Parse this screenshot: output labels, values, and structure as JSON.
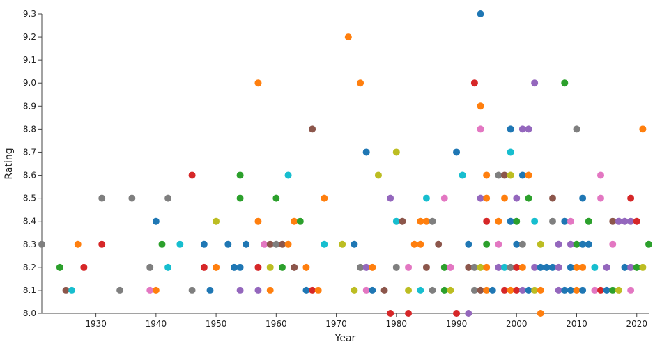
{
  "chart_data": {
    "type": "scatter",
    "title": "",
    "xlabel": "Year",
    "ylabel": "Rating",
    "xlim": [
      1921,
      2022
    ],
    "ylim": [
      8.0,
      9.3
    ],
    "x_ticks": [
      1930,
      1940,
      1950,
      1960,
      1970,
      1980,
      1990,
      2000,
      2010,
      2020
    ],
    "x_tick_labels": [
      "1930",
      "1940",
      "1950",
      "1960",
      "1970",
      "1980",
      "1990",
      "2000",
      "2010",
      "2020"
    ],
    "y_ticks": [
      8.0,
      8.1,
      8.2,
      8.3,
      8.4,
      8.5,
      8.6,
      8.7,
      8.8,
      8.9,
      9.0,
      9.1,
      9.2,
      9.3
    ],
    "y_tick_labels": [
      "8.0",
      "8.1",
      "8.2",
      "8.3",
      "8.4",
      "8.5",
      "8.6",
      "8.7",
      "8.8",
      "8.9",
      "9.0",
      "9.1",
      "9.2",
      "9.3"
    ],
    "grid": false,
    "legend": "none",
    "palette": [
      "#1f77b4",
      "#ff7f0e",
      "#2ca02c",
      "#d62728",
      "#9467bd",
      "#8c564b",
      "#e377c2",
      "#7f7f7f",
      "#bcbd22",
      "#17becf"
    ],
    "points": [
      {
        "x": 1921,
        "y": 8.3,
        "c": "#7f7f7f"
      },
      {
        "x": 1924,
        "y": 8.2,
        "c": "#2ca02c"
      },
      {
        "x": 1925,
        "y": 8.1,
        "c": "#8c564b"
      },
      {
        "x": 1926,
        "y": 8.1,
        "c": "#17becf"
      },
      {
        "x": 1927,
        "y": 8.3,
        "c": "#ff7f0e"
      },
      {
        "x": 1928,
        "y": 8.2,
        "c": "#d62728"
      },
      {
        "x": 1931,
        "y": 8.5,
        "c": "#7f7f7f"
      },
      {
        "x": 1931,
        "y": 8.3,
        "c": "#d62728"
      },
      {
        "x": 1934,
        "y": 8.1,
        "c": "#7f7f7f"
      },
      {
        "x": 1936,
        "y": 8.5,
        "c": "#7f7f7f"
      },
      {
        "x": 1939,
        "y": 8.2,
        "c": "#7f7f7f"
      },
      {
        "x": 1939,
        "y": 8.1,
        "c": "#e377c2"
      },
      {
        "x": 1940,
        "y": 8.4,
        "c": "#1f77b4"
      },
      {
        "x": 1940,
        "y": 8.1,
        "c": "#ff7f0e"
      },
      {
        "x": 1941,
        "y": 8.3,
        "c": "#2ca02c"
      },
      {
        "x": 1942,
        "y": 8.5,
        "c": "#7f7f7f"
      },
      {
        "x": 1942,
        "y": 8.2,
        "c": "#17becf"
      },
      {
        "x": 1944,
        "y": 8.3,
        "c": "#17becf"
      },
      {
        "x": 1946,
        "y": 8.6,
        "c": "#d62728"
      },
      {
        "x": 1946,
        "y": 8.1,
        "c": "#7f7f7f"
      },
      {
        "x": 1948,
        "y": 8.3,
        "c": "#1f77b4"
      },
      {
        "x": 1948,
        "y": 8.2,
        "c": "#d62728"
      },
      {
        "x": 1949,
        "y": 8.1,
        "c": "#1f77b4"
      },
      {
        "x": 1950,
        "y": 8.4,
        "c": "#bcbd22"
      },
      {
        "x": 1950,
        "y": 8.2,
        "c": "#ff7f0e"
      },
      {
        "x": 1952,
        "y": 8.3,
        "c": "#1f77b4"
      },
      {
        "x": 1953,
        "y": 8.2,
        "c": "#1f77b4"
      },
      {
        "x": 1954,
        "y": 8.6,
        "c": "#2ca02c"
      },
      {
        "x": 1954,
        "y": 8.5,
        "c": "#2ca02c"
      },
      {
        "x": 1954,
        "y": 8.2,
        "c": "#1f77b4"
      },
      {
        "x": 1954,
        "y": 8.1,
        "c": "#9467bd"
      },
      {
        "x": 1955,
        "y": 8.3,
        "c": "#1f77b4"
      },
      {
        "x": 1957,
        "y": 9.0,
        "c": "#ff7f0e"
      },
      {
        "x": 1957,
        "y": 8.4,
        "c": "#ff7f0e"
      },
      {
        "x": 1957,
        "y": 8.2,
        "c": "#d62728"
      },
      {
        "x": 1957,
        "y": 8.1,
        "c": "#9467bd"
      },
      {
        "x": 1958,
        "y": 8.3,
        "c": "#e377c2"
      },
      {
        "x": 1959,
        "y": 8.3,
        "c": "#8c564b"
      },
      {
        "x": 1959,
        "y": 8.2,
        "c": "#bcbd22"
      },
      {
        "x": 1959,
        "y": 8.1,
        "c": "#ff7f0e"
      },
      {
        "x": 1960,
        "y": 8.5,
        "c": "#2ca02c"
      },
      {
        "x": 1960,
        "y": 8.3,
        "c": "#7f7f7f"
      },
      {
        "x": 1961,
        "y": 8.3,
        "c": "#8c564b"
      },
      {
        "x": 1961,
        "y": 8.2,
        "c": "#2ca02c"
      },
      {
        "x": 1962,
        "y": 8.6,
        "c": "#17becf"
      },
      {
        "x": 1962,
        "y": 8.3,
        "c": "#ff7f0e"
      },
      {
        "x": 1963,
        "y": 8.4,
        "c": "#ff7f0e"
      },
      {
        "x": 1963,
        "y": 8.2,
        "c": "#8c564b"
      },
      {
        "x": 1964,
        "y": 8.4,
        "c": "#2ca02c"
      },
      {
        "x": 1965,
        "y": 8.2,
        "c": "#ff7f0e"
      },
      {
        "x": 1965,
        "y": 8.1,
        "c": "#1f77b4"
      },
      {
        "x": 1966,
        "y": 8.8,
        "c": "#8c564b"
      },
      {
        "x": 1966,
        "y": 8.1,
        "c": "#d62728"
      },
      {
        "x": 1967,
        "y": 8.1,
        "c": "#ff7f0e"
      },
      {
        "x": 1968,
        "y": 8.5,
        "c": "#ff7f0e"
      },
      {
        "x": 1968,
        "y": 8.3,
        "c": "#17becf"
      },
      {
        "x": 1971,
        "y": 8.3,
        "c": "#bcbd22"
      },
      {
        "x": 1972,
        "y": 9.2,
        "c": "#ff7f0e"
      },
      {
        "x": 1973,
        "y": 8.3,
        "c": "#1f77b4"
      },
      {
        "x": 1973,
        "y": 8.1,
        "c": "#bcbd22"
      },
      {
        "x": 1974,
        "y": 9.0,
        "c": "#ff7f0e"
      },
      {
        "x": 1974,
        "y": 8.2,
        "c": "#7f7f7f"
      },
      {
        "x": 1975,
        "y": 8.7,
        "c": "#1f77b4"
      },
      {
        "x": 1975,
        "y": 8.2,
        "c": "#9467bd"
      },
      {
        "x": 1975,
        "y": 8.1,
        "c": "#e377c2"
      },
      {
        "x": 1976,
        "y": 8.2,
        "c": "#ff7f0e"
      },
      {
        "x": 1976,
        "y": 8.1,
        "c": "#1f77b4"
      },
      {
        "x": 1977,
        "y": 8.6,
        "c": "#bcbd22"
      },
      {
        "x": 1978,
        "y": 8.1,
        "c": "#8c564b"
      },
      {
        "x": 1979,
        "y": 8.5,
        "c": "#9467bd"
      },
      {
        "x": 1979,
        "y": 8.0,
        "c": "#d62728"
      },
      {
        "x": 1980,
        "y": 8.7,
        "c": "#bcbd22"
      },
      {
        "x": 1980,
        "y": 8.4,
        "c": "#17becf"
      },
      {
        "x": 1980,
        "y": 8.2,
        "c": "#7f7f7f"
      },
      {
        "x": 1981,
        "y": 8.4,
        "c": "#8c564b"
      },
      {
        "x": 1982,
        "y": 8.2,
        "c": "#e377c2"
      },
      {
        "x": 1982,
        "y": 8.1,
        "c": "#bcbd22"
      },
      {
        "x": 1982,
        "y": 8.0,
        "c": "#d62728"
      },
      {
        "x": 1983,
        "y": 8.3,
        "c": "#ff7f0e"
      },
      {
        "x": 1984,
        "y": 8.4,
        "c": "#ff7f0e"
      },
      {
        "x": 1984,
        "y": 8.3,
        "c": "#ff7f0e"
      },
      {
        "x": 1984,
        "y": 8.1,
        "c": "#17becf"
      },
      {
        "x": 1985,
        "y": 8.5,
        "c": "#17becf"
      },
      {
        "x": 1985,
        "y": 8.4,
        "c": "#ff7f0e"
      },
      {
        "x": 1985,
        "y": 8.2,
        "c": "#8c564b"
      },
      {
        "x": 1986,
        "y": 8.4,
        "c": "#7f7f7f"
      },
      {
        "x": 1986,
        "y": 8.1,
        "c": "#7f7f7f"
      },
      {
        "x": 1987,
        "y": 8.3,
        "c": "#8c564b"
      },
      {
        "x": 1988,
        "y": 8.5,
        "c": "#e377c2"
      },
      {
        "x": 1988,
        "y": 8.2,
        "c": "#2ca02c"
      },
      {
        "x": 1988,
        "y": 8.1,
        "c": "#2ca02c"
      },
      {
        "x": 1989,
        "y": 8.2,
        "c": "#e377c2"
      },
      {
        "x": 1989,
        "y": 8.1,
        "c": "#bcbd22"
      },
      {
        "x": 1990,
        "y": 8.7,
        "c": "#1f77b4"
      },
      {
        "x": 1990,
        "y": 8.0,
        "c": "#d62728"
      },
      {
        "x": 1991,
        "y": 8.6,
        "c": "#17becf"
      },
      {
        "x": 1992,
        "y": 8.3,
        "c": "#1f77b4"
      },
      {
        "x": 1992,
        "y": 8.2,
        "c": "#8c564b"
      },
      {
        "x": 1992,
        "y": 8.0,
        "c": "#9467bd"
      },
      {
        "x": 1993,
        "y": 9.0,
        "c": "#d62728"
      },
      {
        "x": 1993,
        "y": 8.2,
        "c": "#7f7f7f"
      },
      {
        "x": 1993,
        "y": 8.1,
        "c": "#7f7f7f"
      },
      {
        "x": 1994,
        "y": 9.3,
        "c": "#1f77b4"
      },
      {
        "x": 1994,
        "y": 8.9,
        "c": "#ff7f0e"
      },
      {
        "x": 1994,
        "y": 8.8,
        "c": "#e377c2"
      },
      {
        "x": 1994,
        "y": 8.5,
        "c": "#9467bd"
      },
      {
        "x": 1994,
        "y": 8.2,
        "c": "#bcbd22"
      },
      {
        "x": 1994,
        "y": 8.1,
        "c": "#8c564b"
      },
      {
        "x": 1995,
        "y": 8.6,
        "c": "#ff7f0e"
      },
      {
        "x": 1995,
        "y": 8.5,
        "c": "#ff7f0e"
      },
      {
        "x": 1995,
        "y": 8.4,
        "c": "#d62728"
      },
      {
        "x": 1995,
        "y": 8.3,
        "c": "#2ca02c"
      },
      {
        "x": 1995,
        "y": 8.2,
        "c": "#ff7f0e"
      },
      {
        "x": 1995,
        "y": 8.1,
        "c": "#ff7f0e"
      },
      {
        "x": 1996,
        "y": 8.1,
        "c": "#1f77b4"
      },
      {
        "x": 1997,
        "y": 8.6,
        "c": "#7f7f7f"
      },
      {
        "x": 1997,
        "y": 8.4,
        "c": "#ff7f0e"
      },
      {
        "x": 1997,
        "y": 8.3,
        "c": "#e377c2"
      },
      {
        "x": 1997,
        "y": 8.2,
        "c": "#9467bd"
      },
      {
        "x": 1998,
        "y": 8.6,
        "c": "#8c564b"
      },
      {
        "x": 1998,
        "y": 8.5,
        "c": "#ff7f0e"
      },
      {
        "x": 1998,
        "y": 8.2,
        "c": "#17becf"
      },
      {
        "x": 1998,
        "y": 8.1,
        "c": "#d62728"
      },
      {
        "x": 1999,
        "y": 8.8,
        "c": "#1f77b4"
      },
      {
        "x": 1999,
        "y": 8.7,
        "c": "#17becf"
      },
      {
        "x": 1999,
        "y": 8.6,
        "c": "#bcbd22"
      },
      {
        "x": 1999,
        "y": 8.4,
        "c": "#1f77b4"
      },
      {
        "x": 1999,
        "y": 8.2,
        "c": "#7f7f7f"
      },
      {
        "x": 1999,
        "y": 8.1,
        "c": "#ff7f0e"
      },
      {
        "x": 2000,
        "y": 8.5,
        "c": "#9467bd"
      },
      {
        "x": 2000,
        "y": 8.4,
        "c": "#2ca02c"
      },
      {
        "x": 2000,
        "y": 8.3,
        "c": "#1f77b4"
      },
      {
        "x": 2000,
        "y": 8.2,
        "c": "#d62728"
      },
      {
        "x": 2000,
        "y": 8.1,
        "c": "#d62728"
      },
      {
        "x": 2001,
        "y": 8.8,
        "c": "#9467bd"
      },
      {
        "x": 2001,
        "y": 8.6,
        "c": "#1f77b4"
      },
      {
        "x": 2001,
        "y": 8.3,
        "c": "#7f7f7f"
      },
      {
        "x": 2001,
        "y": 8.2,
        "c": "#ff7f0e"
      },
      {
        "x": 2001,
        "y": 8.1,
        "c": "#9467bd"
      },
      {
        "x": 2002,
        "y": 8.8,
        "c": "#9467bd"
      },
      {
        "x": 2002,
        "y": 8.6,
        "c": "#ff7f0e"
      },
      {
        "x": 2002,
        "y": 8.5,
        "c": "#2ca02c"
      },
      {
        "x": 2002,
        "y": 8.1,
        "c": "#1f77b4"
      },
      {
        "x": 2003,
        "y": 9.0,
        "c": "#9467bd"
      },
      {
        "x": 2003,
        "y": 8.4,
        "c": "#17becf"
      },
      {
        "x": 2003,
        "y": 8.2,
        "c": "#9467bd"
      },
      {
        "x": 2003,
        "y": 8.1,
        "c": "#bcbd22"
      },
      {
        "x": 2004,
        "y": 8.3,
        "c": "#bcbd22"
      },
      {
        "x": 2004,
        "y": 8.2,
        "c": "#1f77b4"
      },
      {
        "x": 2004,
        "y": 8.1,
        "c": "#ff7f0e"
      },
      {
        "x": 2004,
        "y": 8.0,
        "c": "#ff7f0e"
      },
      {
        "x": 2005,
        "y": 8.2,
        "c": "#1f77b4"
      },
      {
        "x": 2006,
        "y": 8.5,
        "c": "#8c564b"
      },
      {
        "x": 2006,
        "y": 8.4,
        "c": "#7f7f7f"
      },
      {
        "x": 2006,
        "y": 8.2,
        "c": "#1f77b4"
      },
      {
        "x": 2007,
        "y": 8.3,
        "c": "#9467bd"
      },
      {
        "x": 2007,
        "y": 8.2,
        "c": "#9467bd"
      },
      {
        "x": 2007,
        "y": 8.1,
        "c": "#9467bd"
      },
      {
        "x": 2008,
        "y": 9.0,
        "c": "#2ca02c"
      },
      {
        "x": 2008,
        "y": 8.4,
        "c": "#1f77b4"
      },
      {
        "x": 2008,
        "y": 8.1,
        "c": "#1f77b4"
      },
      {
        "x": 2009,
        "y": 8.4,
        "c": "#e377c2"
      },
      {
        "x": 2009,
        "y": 8.3,
        "c": "#9467bd"
      },
      {
        "x": 2009,
        "y": 8.2,
        "c": "#1f77b4"
      },
      {
        "x": 2009,
        "y": 8.1,
        "c": "#1f77b4"
      },
      {
        "x": 2010,
        "y": 8.8,
        "c": "#7f7f7f"
      },
      {
        "x": 2010,
        "y": 8.3,
        "c": "#2ca02c"
      },
      {
        "x": 2010,
        "y": 8.2,
        "c": "#ff7f0e"
      },
      {
        "x": 2010,
        "y": 8.1,
        "c": "#ff7f0e"
      },
      {
        "x": 2011,
        "y": 8.5,
        "c": "#1f77b4"
      },
      {
        "x": 2011,
        "y": 8.3,
        "c": "#1f77b4"
      },
      {
        "x": 2011,
        "y": 8.2,
        "c": "#ff7f0e"
      },
      {
        "x": 2011,
        "y": 8.1,
        "c": "#1f77b4"
      },
      {
        "x": 2012,
        "y": 8.4,
        "c": "#2ca02c"
      },
      {
        "x": 2012,
        "y": 8.3,
        "c": "#1f77b4"
      },
      {
        "x": 2013,
        "y": 8.2,
        "c": "#17becf"
      },
      {
        "x": 2013,
        "y": 8.1,
        "c": "#e377c2"
      },
      {
        "x": 2014,
        "y": 8.6,
        "c": "#e377c2"
      },
      {
        "x": 2014,
        "y": 8.5,
        "c": "#e377c2"
      },
      {
        "x": 2014,
        "y": 8.1,
        "c": "#d62728"
      },
      {
        "x": 2015,
        "y": 8.2,
        "c": "#9467bd"
      },
      {
        "x": 2015,
        "y": 8.1,
        "c": "#1f77b4"
      },
      {
        "x": 2016,
        "y": 8.4,
        "c": "#8c564b"
      },
      {
        "x": 2016,
        "y": 8.3,
        "c": "#e377c2"
      },
      {
        "x": 2016,
        "y": 8.1,
        "c": "#2ca02c"
      },
      {
        "x": 2017,
        "y": 8.4,
        "c": "#9467bd"
      },
      {
        "x": 2017,
        "y": 8.1,
        "c": "#bcbd22"
      },
      {
        "x": 2018,
        "y": 8.4,
        "c": "#9467bd"
      },
      {
        "x": 2018,
        "y": 8.2,
        "c": "#1f77b4"
      },
      {
        "x": 2019,
        "y": 8.5,
        "c": "#d62728"
      },
      {
        "x": 2019,
        "y": 8.4,
        "c": "#9467bd"
      },
      {
        "x": 2019,
        "y": 8.2,
        "c": "#9467bd"
      },
      {
        "x": 2019,
        "y": 8.1,
        "c": "#e377c2"
      },
      {
        "x": 2020,
        "y": 8.4,
        "c": "#d62728"
      },
      {
        "x": 2020,
        "y": 8.2,
        "c": "#2ca02c"
      },
      {
        "x": 2021,
        "y": 8.8,
        "c": "#ff7f0e"
      },
      {
        "x": 2021,
        "y": 8.2,
        "c": "#bcbd22"
      },
      {
        "x": 2022,
        "y": 8.3,
        "c": "#2ca02c"
      }
    ]
  }
}
